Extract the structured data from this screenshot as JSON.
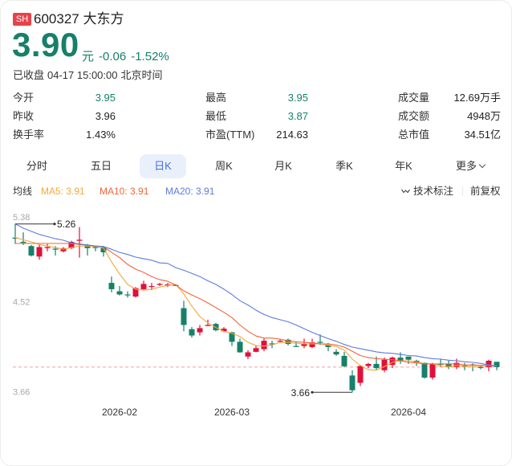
{
  "header": {
    "exchange_badge": "SH",
    "code": "600327",
    "name": "大东方",
    "price": "3.90",
    "unit": "元",
    "change": "-0.06",
    "change_pct": "-1.52%",
    "status": "已收盘",
    "datetime": "04-17 15:00:00",
    "timezone": "北京时间"
  },
  "stats": {
    "items": [
      {
        "label": "今开",
        "value": "3.95",
        "tone": "down"
      },
      {
        "label": "最高",
        "value": "3.95",
        "tone": "down"
      },
      {
        "label": "成交量",
        "value": "12.69万手",
        "tone": "neutral"
      },
      {
        "label": "昨收",
        "value": "3.96",
        "tone": "neutral"
      },
      {
        "label": "最低",
        "value": "3.87",
        "tone": "down"
      },
      {
        "label": "成交额",
        "value": "4948万",
        "tone": "neutral"
      },
      {
        "label": "换手率",
        "value": "1.43%",
        "tone": "neutral"
      },
      {
        "label": "市盈(TTM)",
        "value": "214.63",
        "tone": "neutral"
      },
      {
        "label": "总市值",
        "value": "34.51亿",
        "tone": "neutral"
      }
    ]
  },
  "period_tabs": [
    {
      "label": "分时",
      "active": false
    },
    {
      "label": "五日",
      "active": false
    },
    {
      "label": "日K",
      "active": true
    },
    {
      "label": "周K",
      "active": false
    },
    {
      "label": "月K",
      "active": false
    },
    {
      "label": "季K",
      "active": false
    },
    {
      "label": "年K",
      "active": false
    },
    {
      "label": "更多",
      "active": false,
      "icon": "chevron-down-icon"
    }
  ],
  "legend": {
    "title": "均线",
    "ma5": "MA5: 3.91",
    "ma10": "MA10: 3.91",
    "ma20": "MA20: 3.91",
    "tech_label": "技术标注",
    "tech_icon": "wave-line-icon",
    "adjust_label": "前复权"
  },
  "colors": {
    "up": "#e0103a",
    "down": "#17806a",
    "ma5": "#f5a83a",
    "ma10": "#f2643a",
    "ma20": "#5b7be0",
    "accent": "#4a6fd8",
    "ref_line": "#f3a0a0",
    "badge": "#e8424b"
  },
  "chart_data": {
    "type": "candlestick",
    "title": "600327 大东方 日K",
    "ylim": [
      3.66,
      5.38
    ],
    "y_ticks": [
      "5.38",
      "4.52",
      "3.66"
    ],
    "x_ticks": [
      {
        "label": "2026-02",
        "index": 13
      },
      {
        "label": "2026-03",
        "index": 27
      },
      {
        "label": "2026-04",
        "index": 49
      }
    ],
    "ref_line": 3.9,
    "markers": {
      "high": {
        "label": "5.26",
        "value": 5.26,
        "index": 0
      },
      "low": {
        "label": "3.66",
        "value": 3.66,
        "index": 42
      }
    },
    "ohlc_fields": [
      "open",
      "high",
      "low",
      "close"
    ],
    "candles": [
      [
        5.13,
        5.26,
        5.07,
        5.12
      ],
      [
        5.09,
        5.18,
        5.06,
        5.08
      ],
      [
        5.05,
        5.06,
        4.95,
        4.96
      ],
      [
        4.95,
        5.06,
        4.92,
        5.04
      ],
      [
        5.03,
        5.07,
        5.0,
        5.04
      ],
      [
        5.025,
        5.05,
        4.96,
        5.02
      ],
      [
        5.0,
        5.04,
        4.99,
        5.03
      ],
      [
        5.03,
        5.1,
        5.02,
        5.09
      ],
      [
        5.1,
        5.23,
        4.94,
        5.11
      ],
      [
        5.06,
        5.07,
        4.96,
        5.03
      ],
      [
        5.04,
        5.05,
        5.0,
        5.035
      ],
      [
        5.04,
        5.05,
        4.95,
        4.99
      ],
      [
        4.7,
        4.76,
        4.61,
        4.64
      ],
      [
        4.62,
        4.67,
        4.58,
        4.59
      ],
      [
        4.59,
        4.62,
        4.56,
        4.585
      ],
      [
        4.57,
        4.66,
        4.56,
        4.65
      ],
      [
        4.64,
        4.72,
        4.63,
        4.69
      ],
      [
        4.665,
        4.7,
        4.63,
        4.67
      ],
      [
        4.68,
        4.7,
        4.67,
        4.69
      ],
      [
        4.68,
        4.7,
        4.66,
        4.685
      ],
      [
        4.68,
        4.69,
        4.67,
        4.675
      ],
      [
        4.46,
        4.53,
        4.24,
        4.3
      ],
      [
        4.26,
        4.28,
        4.18,
        4.2
      ],
      [
        4.23,
        4.3,
        4.2,
        4.27
      ],
      [
        4.29,
        4.35,
        4.29,
        4.3
      ],
      [
        4.31,
        4.32,
        4.24,
        4.25
      ],
      [
        4.24,
        4.28,
        4.23,
        4.265
      ],
      [
        4.23,
        4.235,
        4.1,
        4.14
      ],
      [
        4.14,
        4.17,
        4.036,
        4.04
      ],
      [
        4.0,
        4.06,
        3.975,
        4.04
      ],
      [
        4.045,
        4.105,
        4.04,
        4.08
      ],
      [
        4.07,
        4.17,
        4.05,
        4.15
      ],
      [
        4.125,
        4.15,
        4.08,
        4.12
      ],
      [
        4.145,
        4.16,
        4.14,
        4.15
      ],
      [
        4.16,
        4.17,
        4.105,
        4.12
      ],
      [
        4.1,
        4.14,
        4.09,
        4.097
      ],
      [
        4.1,
        4.17,
        4.08,
        4.12
      ],
      [
        4.09,
        4.17,
        4.08,
        4.135
      ],
      [
        4.14,
        4.21,
        4.11,
        4.135
      ],
      [
        4.11,
        4.13,
        4.05,
        4.09
      ],
      [
        4.045,
        4.07,
        4.006,
        4.02
      ],
      [
        4.006,
        4.044,
        3.9,
        3.907
      ],
      [
        3.82,
        3.87,
        3.66,
        3.68
      ],
      [
        3.75,
        3.92,
        3.72,
        3.91
      ],
      [
        3.91,
        3.94,
        3.89,
        3.93
      ],
      [
        3.93,
        4.0,
        3.87,
        3.89
      ],
      [
        3.87,
        3.99,
        3.85,
        3.97
      ],
      [
        3.92,
        4.0,
        3.89,
        3.99
      ],
      [
        3.99,
        4.04,
        3.93,
        3.96
      ],
      [
        4.0,
        4.0,
        3.93,
        3.97
      ],
      [
        3.96,
        3.97,
        3.91,
        3.94
      ],
      [
        3.94,
        3.94,
        3.79,
        3.8
      ],
      [
        3.8,
        3.94,
        3.78,
        3.93
      ],
      [
        3.93,
        3.98,
        3.91,
        3.925
      ],
      [
        3.93,
        3.96,
        3.88,
        3.9
      ],
      [
        3.9,
        3.98,
        3.88,
        3.94
      ],
      [
        3.915,
        3.94,
        3.87,
        3.91
      ],
      [
        3.925,
        3.935,
        3.86,
        3.92
      ],
      [
        3.9,
        3.92,
        3.88,
        3.898
      ],
      [
        3.9,
        3.97,
        3.86,
        3.96
      ],
      [
        3.95,
        3.95,
        3.87,
        3.9
      ]
    ],
    "series": [
      {
        "name": "MA5",
        "color_key": "ma5",
        "values": [
          5.13,
          5.11,
          5.09,
          5.065,
          5.05,
          5.035,
          5.02,
          5.035,
          5.05,
          5.05,
          5.045,
          5.03,
          4.9,
          4.785,
          4.685,
          4.64,
          4.63,
          4.64,
          4.66,
          4.675,
          4.685,
          4.595,
          4.48,
          4.38,
          4.32,
          4.275,
          4.24,
          4.22,
          4.19,
          4.135,
          4.105,
          4.1,
          4.11,
          4.135,
          4.135,
          4.125,
          4.12,
          4.12,
          4.12,
          4.11,
          4.095,
          4.06,
          3.975,
          3.915,
          3.875,
          3.87,
          3.905,
          3.945,
          3.96,
          3.96,
          3.95,
          3.93,
          3.93,
          3.905,
          3.905,
          3.915,
          3.905,
          3.905,
          3.905,
          3.92,
          3.91
        ]
      },
      {
        "name": "MA10",
        "color_key": "ma10",
        "values": [
          5.075,
          5.075,
          5.075,
          5.075,
          5.075,
          5.075,
          5.075,
          5.075,
          5.065,
          5.06,
          5.05,
          5.045,
          4.99,
          4.94,
          4.875,
          4.83,
          4.8,
          4.76,
          4.73,
          4.715,
          4.68,
          4.625,
          4.585,
          4.55,
          4.51,
          4.465,
          4.42,
          4.37,
          4.3,
          4.24,
          4.195,
          4.175,
          4.175,
          4.165,
          4.15,
          4.14,
          4.135,
          4.13,
          4.12,
          4.12,
          4.11,
          4.09,
          4.05,
          4.01,
          3.99,
          3.98,
          3.975,
          3.97,
          3.96,
          3.945,
          3.94,
          3.93,
          3.93,
          3.93,
          3.93,
          3.93,
          3.92,
          3.92,
          3.915,
          3.915,
          3.91
        ]
      },
      {
        "name": "MA20",
        "color_key": "ma20",
        "values": [
          5.26,
          5.22,
          5.19,
          5.16,
          5.14,
          5.12,
          5.105,
          5.08,
          5.07,
          5.06,
          5.05,
          5.045,
          5.02,
          4.99,
          4.97,
          4.945,
          4.93,
          4.915,
          4.89,
          4.885,
          4.845,
          4.82,
          4.79,
          4.76,
          4.72,
          4.685,
          4.64,
          4.59,
          4.53,
          4.49,
          4.44,
          4.4,
          4.37,
          4.35,
          4.33,
          4.3,
          4.265,
          4.23,
          4.2,
          4.17,
          4.145,
          4.115,
          4.09,
          4.075,
          4.06,
          4.045,
          4.035,
          4.03,
          4.02,
          4.01,
          4.005,
          3.99,
          3.98,
          3.975,
          3.965,
          3.96,
          3.95,
          3.945,
          3.935,
          3.92,
          3.91
        ]
      }
    ],
    "xlabel": "",
    "ylabel": "",
    "grid": false,
    "legend_position": "top"
  }
}
